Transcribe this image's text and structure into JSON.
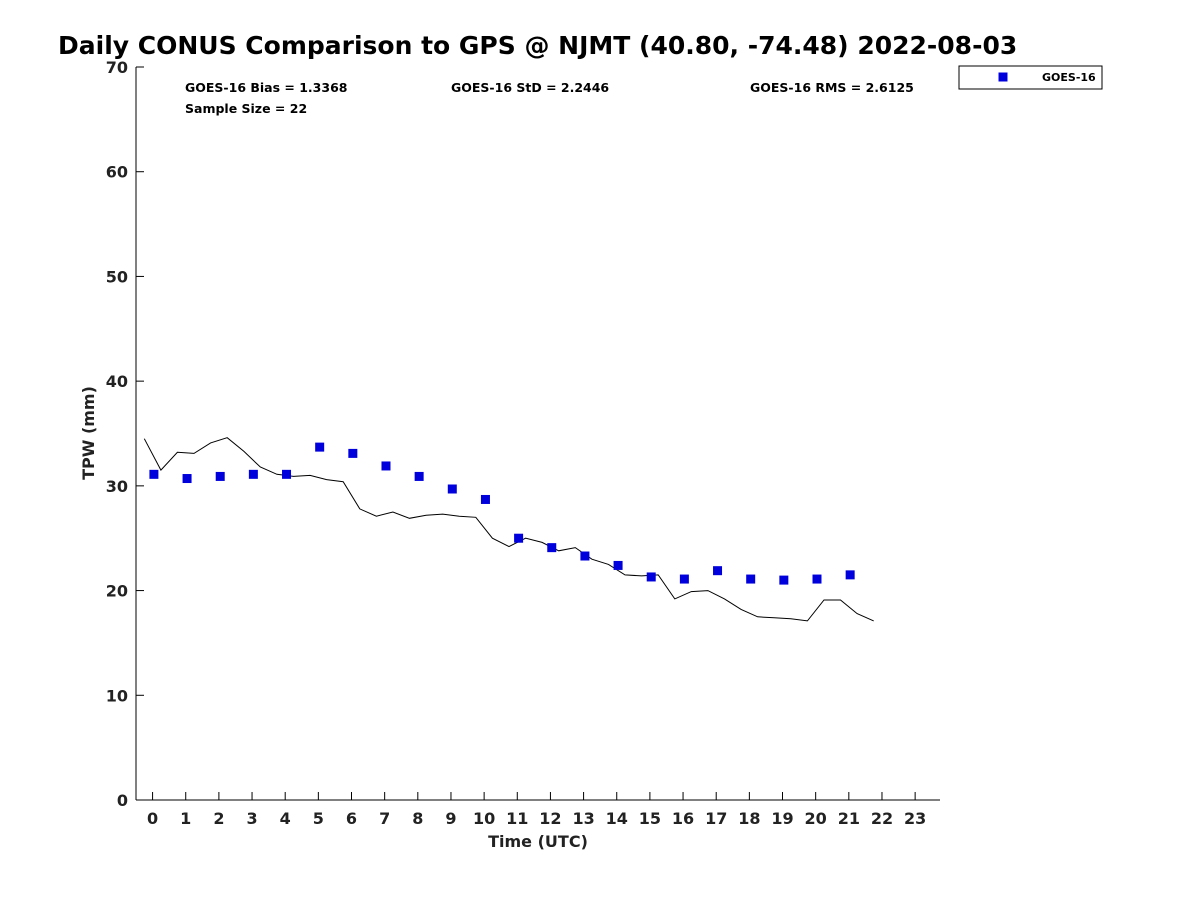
{
  "chart_data": {
    "type": "scatter",
    "title": "Daily CONUS Comparison to GPS @ NJMT (40.80, -74.48) 2022-08-03",
    "xlabel": "Time (UTC)",
    "ylabel": "TPW (mm)",
    "xlim": [
      -0.5,
      23.75
    ],
    "ylim": [
      0,
      70
    ],
    "xticks": [
      0,
      1,
      2,
      3,
      4,
      5,
      6,
      7,
      8,
      9,
      10,
      11,
      12,
      13,
      14,
      15,
      16,
      17,
      18,
      19,
      20,
      21,
      22,
      23
    ],
    "yticks": [
      0,
      10,
      20,
      30,
      40,
      50,
      60,
      70
    ],
    "grid": false,
    "legend_position": "top-right",
    "stats": {
      "bias": "GOES-16 Bias = 1.3368",
      "std": "GOES-16 StD = 2.2446",
      "rms": "GOES-16 RMS = 2.6125",
      "sample": "Sample Size = 22"
    },
    "series": [
      {
        "name": "GOES-16",
        "kind": "scatter",
        "marker": "square",
        "color": "#0000dd",
        "x": [
          0.04,
          1.04,
          2.04,
          3.04,
          4.04,
          5.04,
          6.04,
          7.04,
          8.04,
          9.04,
          10.04,
          11.04,
          12.04,
          13.04,
          14.04,
          15.04,
          16.04,
          17.04,
          18.04,
          19.04,
          20.04,
          21.04
        ],
        "y": [
          31.1,
          30.7,
          30.9,
          31.1,
          31.1,
          33.7,
          33.1,
          31.9,
          30.9,
          29.7,
          28.7,
          25.0,
          24.1,
          23.3,
          22.4,
          21.3,
          21.1,
          21.9,
          21.1,
          21.0,
          21.1,
          21.5
        ]
      },
      {
        "kind": "line",
        "color": "#000000",
        "x": [
          -0.25,
          0.25,
          0.75,
          1.25,
          1.75,
          2.25,
          2.75,
          3.25,
          3.75,
          4.25,
          4.75,
          5.25,
          5.75,
          6.25,
          6.75,
          7.25,
          7.75,
          8.25,
          8.75,
          9.25,
          9.75,
          10.25,
          10.75,
          11.25,
          11.75,
          12.25,
          12.75,
          13.25,
          13.75,
          14.25,
          14.75,
          15.25,
          15.75,
          16.25,
          16.75,
          17.25,
          17.75,
          18.25,
          18.75,
          19.25,
          19.75,
          20.25,
          20.75,
          21.25,
          21.75
        ],
        "y": [
          34.5,
          31.5,
          33.2,
          33.1,
          34.1,
          34.6,
          33.3,
          31.8,
          31.1,
          30.9,
          31.0,
          30.6,
          30.4,
          27.8,
          27.1,
          27.5,
          26.9,
          27.2,
          27.3,
          27.1,
          27.0,
          25.0,
          24.2,
          25.0,
          24.6,
          23.8,
          24.1,
          23.0,
          22.5,
          21.5,
          21.4,
          21.5,
          19.2,
          19.9,
          20.0,
          19.2,
          18.2,
          17.5,
          17.4,
          17.3,
          17.1,
          19.1,
          19.1,
          17.8,
          17.1
        ]
      }
    ]
  }
}
